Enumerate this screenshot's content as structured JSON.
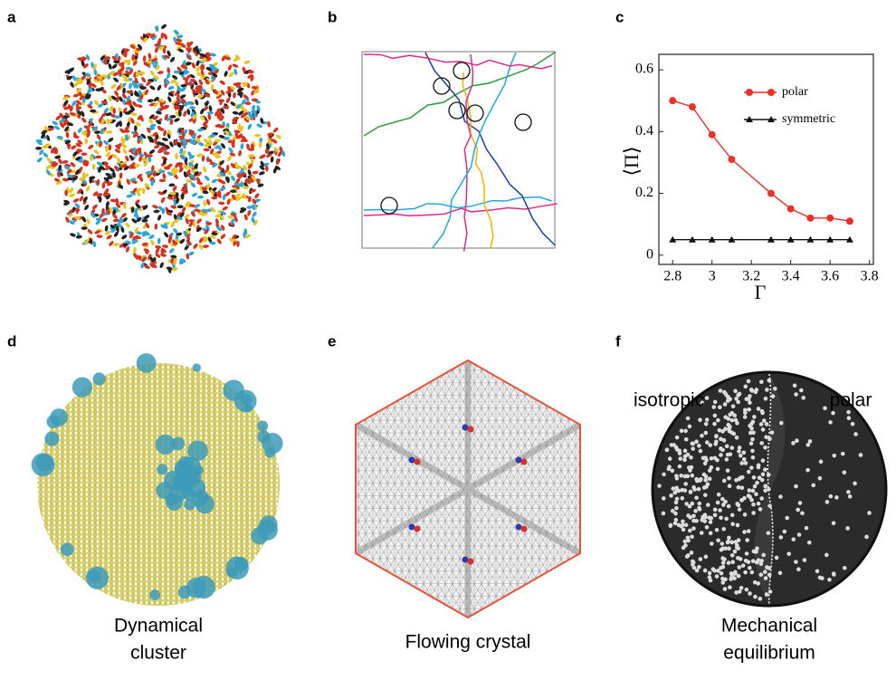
{
  "panel_labels": [
    "a",
    "b",
    "c",
    "d",
    "e",
    "f"
  ],
  "captions": [
    [
      "Dynamical",
      "cluster"
    ],
    [
      "Flowing crystal"
    ],
    [
      "Mechanical",
      "equilibrium"
    ]
  ],
  "side_labels": [
    "isotropic",
    "polar"
  ],
  "chart_data": {
    "type": "line",
    "xlabel": "Γ",
    "ylabel": "⟨Π⟩",
    "x": [
      2.8,
      2.9,
      3.0,
      3.1,
      3.3,
      3.4,
      3.5,
      3.6,
      3.7
    ],
    "series": [
      {
        "name": "polar",
        "color": "#e8322a",
        "marker": "circle",
        "values": [
          0.5,
          0.48,
          0.39,
          0.31,
          0.2,
          0.15,
          0.12,
          0.12,
          0.11
        ]
      },
      {
        "name": "symmetric",
        "color": "#111111",
        "marker": "triangle",
        "values": [
          0.05,
          0.05,
          0.05,
          0.05,
          0.05,
          0.05,
          0.05,
          0.05,
          0.05
        ]
      }
    ],
    "xlim": [
      2.73,
      3.82
    ],
    "ylim": [
      -0.03,
      0.65
    ],
    "xticks": [
      2.8,
      3,
      3.2,
      3.4,
      3.6,
      3.8
    ],
    "yticks": [
      0,
      0.2,
      0.4,
      0.6
    ]
  }
}
